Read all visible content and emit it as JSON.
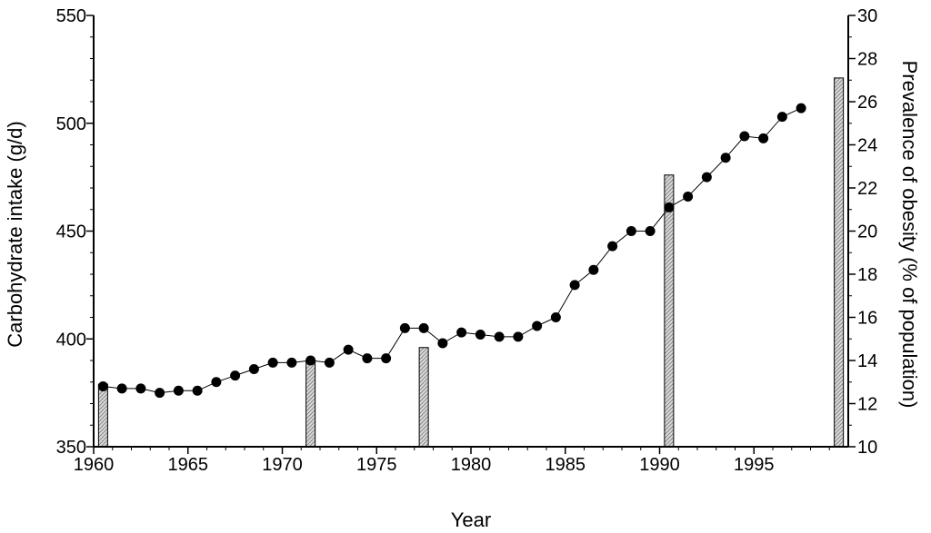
{
  "chart_data": {
    "type": "bar+line",
    "xlabel": "Year",
    "ylabel_left": "Carbohydrate intake (g/d)",
    "ylabel_right": "Prevalence of obesity (% of population)",
    "xlim": [
      1960,
      2000
    ],
    "ylim_left": [
      350,
      550
    ],
    "ylim_right": [
      10,
      30
    ],
    "x_ticks": [
      1960,
      1965,
      1970,
      1975,
      1980,
      1985,
      1990,
      1995
    ],
    "y_left_ticks": [
      350,
      400,
      450,
      500,
      550
    ],
    "y_right_ticks": [
      10,
      12,
      14,
      16,
      18,
      20,
      22,
      24,
      26,
      28,
      30
    ],
    "grid": false,
    "series": [
      {
        "type": "line",
        "axis": "left",
        "x": [
          1960.5,
          1961.5,
          1962.5,
          1963.5,
          1964.5,
          1965.5,
          1966.5,
          1967.5,
          1968.5,
          1969.5,
          1970.5,
          1971.5,
          1972.5,
          1973.5,
          1974.5,
          1975.5,
          1976.5,
          1977.5,
          1978.5,
          1979.5,
          1980.5,
          1981.5,
          1982.5,
          1983.5,
          1984.5,
          1985.5,
          1986.5,
          1987.5,
          1988.5,
          1989.5,
          1990.5,
          1991.5,
          1992.5,
          1993.5,
          1994.5,
          1995.5,
          1996.5,
          1997.5
        ],
        "values": [
          378,
          377,
          377,
          375,
          376,
          376,
          380,
          383,
          386,
          389,
          389,
          390,
          389,
          395,
          391,
          391,
          405,
          405,
          398,
          403,
          402,
          401,
          401,
          406,
          410,
          425,
          432,
          443,
          450,
          450,
          461,
          466,
          475,
          484,
          494,
          493,
          503,
          507
        ],
        "color": "#000000"
      },
      {
        "type": "bar",
        "axis": "right",
        "x": [
          1960.5,
          1971.5,
          1977.5,
          1990.5,
          1999.5
        ],
        "values": [
          12.9,
          14.0,
          14.6,
          22.6,
          27.1
        ],
        "color": "#aaaaaa"
      }
    ]
  }
}
